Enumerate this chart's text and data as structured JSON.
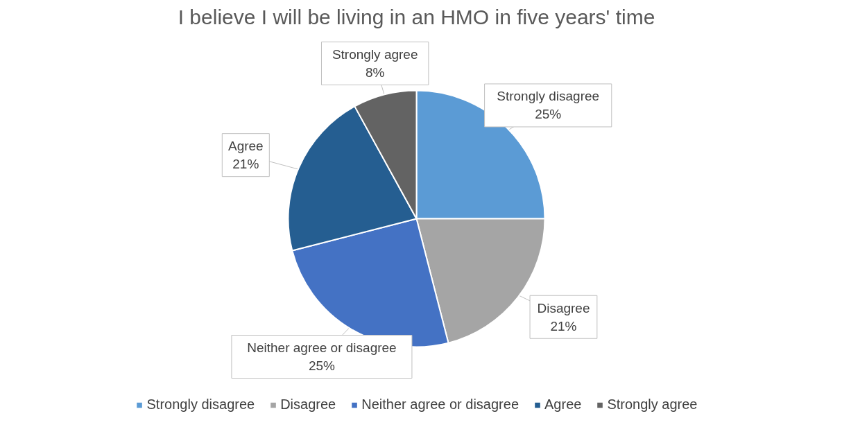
{
  "chart_data": {
    "type": "pie",
    "title": "I believe I will be living in an HMO in five years' time",
    "categories": [
      "Strongly disagree",
      "Disagree",
      "Neither agree or disagree",
      "Agree",
      "Strongly agree"
    ],
    "values": [
      25,
      21,
      25,
      21,
      8
    ],
    "colors": [
      "#5b9bd5",
      "#a5a5a5",
      "#4472c4",
      "#255e91",
      "#636363"
    ],
    "value_labels": [
      "25%",
      "21%",
      "25%",
      "21%",
      "8%"
    ],
    "legend": "bottom"
  }
}
